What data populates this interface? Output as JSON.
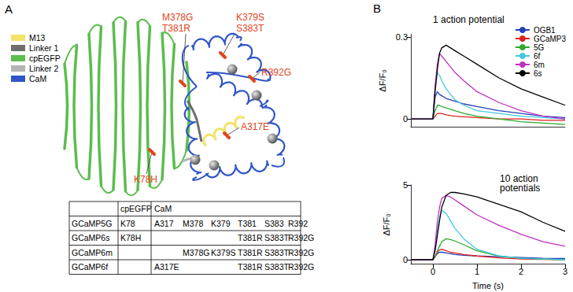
{
  "panel_labels": [
    "A",
    "B"
  ],
  "diagram": {
    "legend": [
      {
        "label": "M13",
        "color": "#f2e36a"
      },
      {
        "label": "Linker 1",
        "color": "#6e6e6e"
      },
      {
        "label": "cpEGFP",
        "color": "#5bbd4e"
      },
      {
        "label": "Linker 2",
        "color": "#b4b4b4"
      },
      {
        "label": "CaM",
        "color": "#2f55c8"
      }
    ],
    "mutations": [
      "M378G",
      "T381R",
      "K379S",
      "S383T",
      "R392G",
      "A317E",
      "K78H"
    ]
  },
  "table": {
    "header": [
      null,
      "cpEGFP",
      "CaM"
    ],
    "rows": [
      [
        "GCaMP5G",
        "K78",
        "A317",
        "M378",
        "K379",
        "T381",
        "S383",
        "R392"
      ],
      [
        "GCaMP6s",
        "K78H",
        null,
        null,
        null,
        "T381R",
        "S383T",
        "R392G"
      ],
      [
        "GCaMP6m",
        null,
        null,
        "M378G",
        "K379S",
        "T381R",
        "S383T",
        "R392G"
      ],
      [
        "GCaMP6f",
        null,
        "A317E",
        null,
        null,
        "T381R",
        "S383T",
        "R392G"
      ]
    ]
  },
  "chart_data": [
    {
      "type": "line",
      "title": "1 action potential",
      "ylabel": "ΔF/F₀",
      "xlim": [
        -0.5,
        3
      ],
      "ylim": [
        -0.03,
        0.31
      ],
      "yticks": [
        0,
        0.3
      ],
      "tick_labels": "y",
      "grid": false,
      "legend": "top-right",
      "x": [
        -0.5,
        -0.1,
        0,
        0.05,
        0.1,
        0.15,
        0.2,
        0.3,
        0.4,
        0.5,
        0.7,
        1,
        1.5,
        2,
        2.5,
        3
      ],
      "series": [
        {
          "name": "OGB1",
          "color": "#2340b8",
          "values": [
            0,
            0,
            0,
            0.08,
            0.1,
            0.09,
            0.085,
            0.075,
            0.07,
            0.065,
            0.055,
            0.045,
            0.03,
            0.02,
            0.01,
            0.005
          ]
        },
        {
          "name": "GCaMP3",
          "color": "#e02020",
          "values": [
            0,
            0,
            0,
            0.01,
            0.02,
            0.02,
            0.02,
            0.015,
            0.012,
            0.01,
            0.008,
            0.005,
            0,
            0,
            -0.005,
            -0.005
          ]
        },
        {
          "name": "5G",
          "color": "#2eaa2e",
          "values": [
            0,
            0,
            0,
            0.03,
            0.05,
            0.05,
            0.045,
            0.04,
            0.035,
            0.03,
            0.02,
            0.01,
            0,
            -0.01,
            -0.015,
            -0.02
          ]
        },
        {
          "name": "6f",
          "color": "#40c8e0",
          "values": [
            0,
            0,
            0,
            0.12,
            0.17,
            0.16,
            0.14,
            0.11,
            0.09,
            0.07,
            0.05,
            0.03,
            0.02,
            0.01,
            0.005,
            0
          ]
        },
        {
          "name": "6m",
          "color": "#c030c0",
          "values": [
            0,
            0,
            0,
            0.12,
            0.2,
            0.24,
            0.23,
            0.21,
            0.19,
            0.17,
            0.14,
            0.1,
            0.06,
            0.03,
            0.01,
            0
          ]
        },
        {
          "name": "6s",
          "color": "#000000",
          "values": [
            0,
            0,
            0,
            0.1,
            0.18,
            0.24,
            0.26,
            0.27,
            0.26,
            0.25,
            0.23,
            0.2,
            0.15,
            0.11,
            0.08,
            0.05
          ]
        }
      ]
    },
    {
      "type": "line",
      "title": "10 action potentials",
      "xlabel": "Time (s)",
      "ylabel": "ΔF/F₀",
      "xlim": [
        -0.5,
        3
      ],
      "xticks": [
        0,
        1,
        2,
        3
      ],
      "ylim": [
        -0.3,
        5
      ],
      "yticks": [
        0,
        5
      ],
      "grid": false,
      "x": [
        -0.5,
        -0.1,
        0,
        0.05,
        0.1,
        0.15,
        0.2,
        0.3,
        0.4,
        0.5,
        0.7,
        1,
        1.5,
        2,
        2.5,
        3
      ],
      "series": [
        {
          "name": "OGB1",
          "color": "#2340b8",
          "values": [
            0,
            0,
            0,
            0.2,
            0.4,
            0.5,
            0.5,
            0.45,
            0.4,
            0.35,
            0.3,
            0.25,
            0.2,
            0.15,
            0.1,
            0.08
          ]
        },
        {
          "name": "GCaMP3",
          "color": "#e02020",
          "values": [
            0,
            0,
            0,
            0.2,
            0.5,
            0.65,
            0.7,
            0.6,
            0.5,
            0.45,
            0.35,
            0.25,
            0.12,
            0.05,
            0.02,
            0
          ]
        },
        {
          "name": "5G",
          "color": "#2eaa2e",
          "values": [
            0,
            0,
            0,
            0.2,
            0.6,
            0.9,
            1.2,
            1.4,
            1.35,
            1.25,
            1,
            0.6,
            0.25,
            0.1,
            0.05,
            0
          ]
        },
        {
          "name": "6f",
          "color": "#40c8e0",
          "values": [
            0,
            0,
            0,
            0.8,
            2,
            2.8,
            3.3,
            3.1,
            2.6,
            2.1,
            1.4,
            0.7,
            0.25,
            0.1,
            0.05,
            0
          ]
        },
        {
          "name": "6m",
          "color": "#c030c0",
          "values": [
            0,
            0,
            0,
            1,
            2.5,
            3.5,
            4.1,
            4.3,
            4.2,
            4,
            3.6,
            3,
            2.3,
            1.7,
            1.2,
            0.9
          ]
        },
        {
          "name": "6s",
          "color": "#000000",
          "values": [
            0,
            0,
            0,
            0.6,
            1.6,
            2.6,
            3.5,
            4.3,
            4.5,
            4.5,
            4.4,
            4.2,
            3.7,
            3.2,
            2.5,
            1.9
          ]
        }
      ]
    }
  ]
}
